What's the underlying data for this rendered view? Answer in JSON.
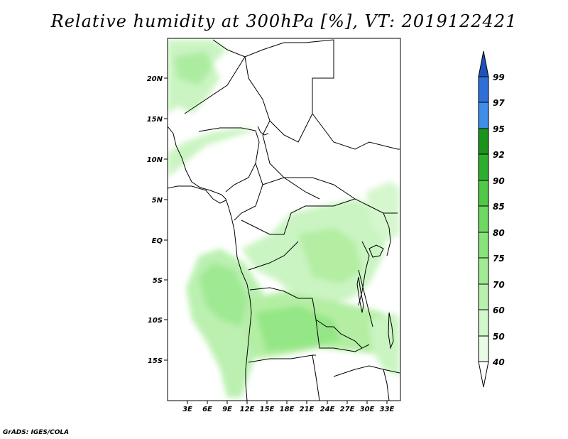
{
  "title": "Relative humidity at 300hPa [%], VT: 2019122421",
  "credit": "GrADS: IGES/COLA",
  "chart_data": {
    "type": "heatmap",
    "title": "Relative humidity at 300hPa [%], VT: 2019122421",
    "variable": "Relative humidity",
    "level": "300hPa",
    "units": "%",
    "valid_time": "2019122421",
    "x_ticks": [
      "3E",
      "6E",
      "9E",
      "12E",
      "15E",
      "18E",
      "21E",
      "24E",
      "27E",
      "30E",
      "33E"
    ],
    "y_ticks": [
      "20N",
      "15N",
      "10N",
      "5N",
      "EQ",
      "5S",
      "10S",
      "15S"
    ],
    "colorbar": {
      "levels": [
        "40",
        "50",
        "60",
        "70",
        "75",
        "80",
        "85",
        "90",
        "92",
        "95",
        "97",
        "99"
      ],
      "colors": [
        "#ffffff",
        "#e8fce3",
        "#d2f7ca",
        "#b8f0ad",
        "#a0eb94",
        "#87e37a",
        "#6ed862",
        "#50c848",
        "#2eae2e",
        "#1a941a",
        "#3f8ee8",
        "#2f6fd8",
        "#1f52b8"
      ]
    },
    "grid": false
  }
}
